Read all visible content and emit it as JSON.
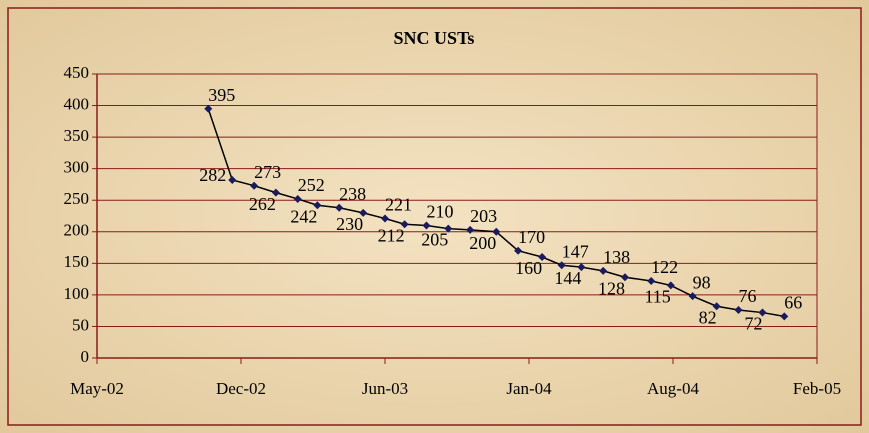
{
  "chart_data": {
    "type": "line",
    "title": "SNC USTs",
    "x": [
      5.1,
      6.2,
      7.2,
      8.2,
      9.2,
      10.1,
      11.1,
      12.2,
      13.2,
      14.1,
      15.1,
      16.1,
      17.1,
      18.3,
      19.3,
      20.4,
      21.3,
      22.2,
      23.2,
      24.2,
      25.4,
      26.3,
      27.3,
      28.4,
      29.4,
      30.5,
      31.5
    ],
    "series": [
      {
        "color": "#000000",
        "marker_color": "#1a1a5e",
        "values": [
          395,
          282,
          273,
          262,
          252,
          242,
          238,
          230,
          221,
          212,
          210,
          205,
          203,
          200,
          170,
          160,
          147,
          144,
          138,
          128,
          122,
          115,
          98,
          82,
          76,
          72,
          66
        ]
      }
    ],
    "xlim": [
      0,
      33
    ],
    "xticks": [
      {
        "value": 0,
        "label": "May-02"
      },
      {
        "value": 6.6,
        "label": "Dec-02"
      },
      {
        "value": 13.2,
        "label": "Jun-03"
      },
      {
        "value": 19.8,
        "label": "Jan-04"
      },
      {
        "value": 26.4,
        "label": "Aug-04"
      },
      {
        "value": 33,
        "label": "Feb-05"
      }
    ],
    "ylim": [
      0,
      450
    ],
    "yticks": [
      0,
      50,
      100,
      150,
      200,
      250,
      300,
      350,
      400,
      450
    ],
    "grid": true,
    "axis_color": "#8b1a1a"
  }
}
